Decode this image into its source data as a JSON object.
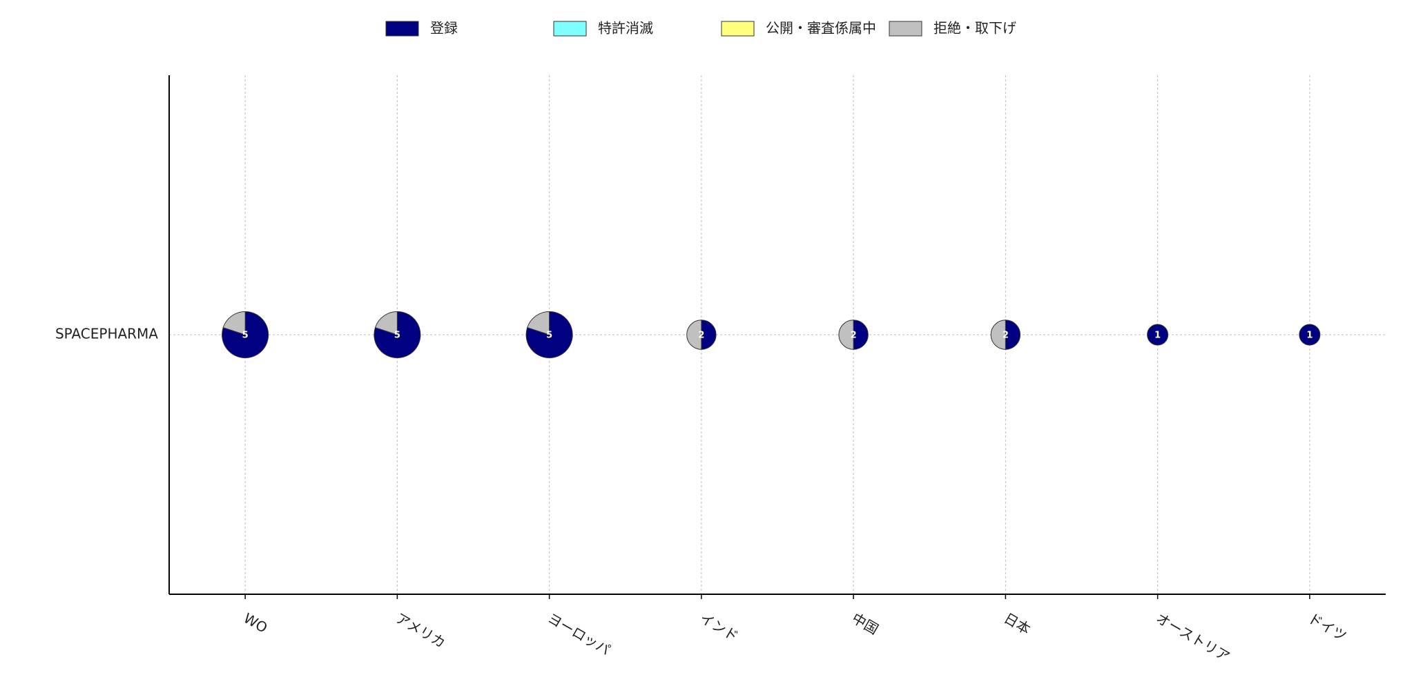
{
  "chart_data": {
    "type": "pie-grid",
    "categories": [
      "WO",
      "アメリカ",
      "ヨーロッパ",
      "インド",
      "中国",
      "日本",
      "オーストリア",
      "ドイツ"
    ],
    "rows": [
      "SPACEPHARMA"
    ],
    "series": [
      {
        "name": "登録",
        "color": "#000080",
        "values": [
          4,
          4,
          4,
          1,
          1,
          1,
          1,
          1
        ]
      },
      {
        "name": "特許消滅",
        "color": "#80ffff",
        "values": [
          0,
          0,
          0,
          0,
          0,
          0,
          0,
          0
        ]
      },
      {
        "name": "公開・審査係属中",
        "color": "#ffff80",
        "values": [
          0,
          0,
          0,
          0,
          0,
          0,
          0,
          0
        ]
      },
      {
        "name": "拒絶・取下げ",
        "color": "#c0c0c0",
        "values": [
          1,
          1,
          1,
          1,
          1,
          1,
          0,
          0
        ]
      }
    ],
    "totals": [
      5,
      5,
      5,
      2,
      2,
      2,
      1,
      1
    ],
    "grid": true
  }
}
